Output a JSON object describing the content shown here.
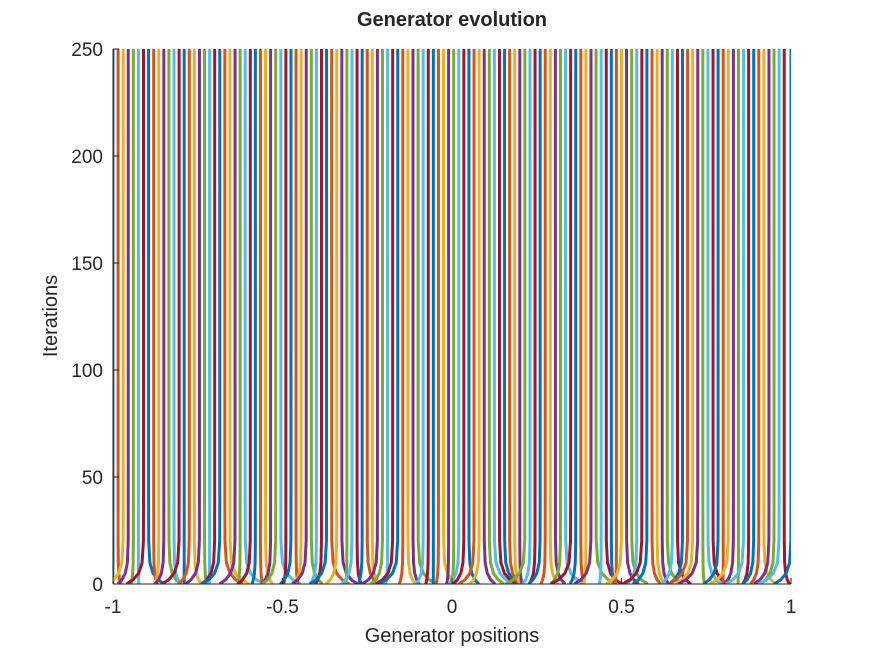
{
  "chart_data": {
    "type": "line",
    "title": "Generator evolution",
    "xlabel": "Generator positions",
    "ylabel": "Iterations",
    "xlim": [
      -1,
      1
    ],
    "ylim": [
      0,
      250
    ],
    "x_ticks": [
      -1,
      -0.5,
      0,
      0.5,
      1
    ],
    "x_tick_labels": [
      "-1",
      "-0.5",
      "0",
      "0.5",
      "1"
    ],
    "y_ticks": [
      0,
      50,
      100,
      150,
      200,
      250
    ],
    "y_tick_labels": [
      "0",
      "50",
      "100",
      "150",
      "200",
      "250"
    ],
    "grid": false,
    "legend": "none",
    "series_description": "Many generator trajectories; each starts at an initial position at iteration 0, moves quickly toward its final position and stays constant up to iteration 250.",
    "iterations": [
      0,
      2,
      5,
      10,
      20,
      40,
      80,
      250
    ],
    "series_final_positions": [
      -1.0,
      -0.985,
      -0.97,
      -0.955,
      -0.94,
      -0.925,
      -0.91,
      -0.895,
      -0.88,
      -0.865,
      -0.85,
      -0.835,
      -0.82,
      -0.805,
      -0.79,
      -0.775,
      -0.76,
      -0.745,
      -0.73,
      -0.715,
      -0.7,
      -0.685,
      -0.67,
      -0.655,
      -0.64,
      -0.625,
      -0.61,
      -0.595,
      -0.58,
      -0.565,
      -0.55,
      -0.535,
      -0.52,
      -0.505,
      -0.49,
      -0.475,
      -0.46,
      -0.445,
      -0.43,
      -0.415,
      -0.4,
      -0.385,
      -0.37,
      -0.355,
      -0.34,
      -0.325,
      -0.31,
      -0.295,
      -0.28,
      -0.265,
      -0.25,
      -0.235,
      -0.22,
      -0.205,
      -0.19,
      -0.175,
      -0.16,
      -0.145,
      -0.13,
      -0.115,
      -0.1,
      -0.085,
      -0.07,
      -0.055,
      -0.04,
      -0.025,
      -0.01,
      0.005,
      0.02,
      0.035,
      0.05,
      0.065,
      0.08,
      0.095,
      0.11,
      0.125,
      0.14,
      0.155,
      0.17,
      0.185,
      0.2,
      0.215,
      0.23,
      0.245,
      0.26,
      0.275,
      0.29,
      0.305,
      0.32,
      0.335,
      0.35,
      0.365,
      0.38,
      0.395,
      0.41,
      0.425,
      0.44,
      0.455,
      0.47,
      0.485,
      0.5,
      0.515,
      0.53,
      0.545,
      0.56,
      0.575,
      0.59,
      0.605,
      0.62,
      0.635,
      0.65,
      0.665,
      0.68,
      0.695,
      0.71,
      0.725,
      0.74,
      0.755,
      0.77,
      0.785,
      0.8,
      0.815,
      0.83,
      0.845,
      0.86,
      0.875,
      0.89,
      0.905,
      0.92,
      0.935,
      0.95,
      0.965,
      0.98,
      1.0
    ],
    "colors": [
      "#0072BD",
      "#D95319",
      "#EDB120",
      "#7E2F8E",
      "#77AC30",
      "#4DBEEE",
      "#A2142F"
    ]
  }
}
